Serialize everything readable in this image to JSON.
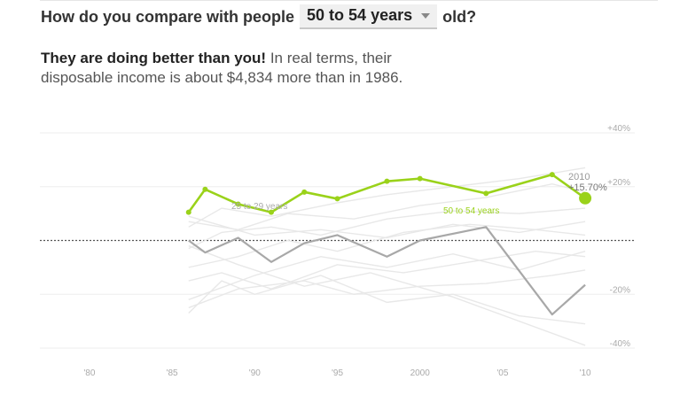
{
  "question": {
    "prefix": "How do you compare with people",
    "selected": "50 to 54 years",
    "suffix": "old?"
  },
  "verdict": {
    "headline": "They are doing better than you!",
    "text": "In real terms, their disposable income is about $4,834 more than in 1986."
  },
  "colors": {
    "highlight": "#9ad21a",
    "comparison": "#a8a8a8",
    "background_series": "#e8e8e8",
    "grid": "#ededed"
  },
  "chart_data": {
    "type": "line",
    "xlim": [
      1977,
      2013
    ],
    "ylim": [
      -40,
      40
    ],
    "y_ticks": [
      {
        "value": 40,
        "label": "+40%"
      },
      {
        "value": 20,
        "label": "+20%"
      },
      {
        "value": -20,
        "label": "-20%"
      },
      {
        "value": -40,
        "label": "-40%"
      }
    ],
    "x_ticks": [
      {
        "value": 1980,
        "label": "'80"
      },
      {
        "value": 1985,
        "label": "'85"
      },
      {
        "value": 1990,
        "label": "'90"
      },
      {
        "value": 1995,
        "label": "'95"
      },
      {
        "value": 2000,
        "label": "2000"
      },
      {
        "value": 2005,
        "label": "'05"
      },
      {
        "value": 2010,
        "label": "'10"
      }
    ],
    "zero_line": "dotted",
    "highlight_series": {
      "name": "50 to 54 years",
      "x": [
        1986,
        1987,
        1989,
        1991,
        1993,
        1995,
        1998,
        2000,
        2004,
        2008,
        2010
      ],
      "y": [
        10.5,
        19,
        13.5,
        10.5,
        18,
        15.5,
        22,
        23,
        17.5,
        24.5,
        15.7
      ]
    },
    "comparison_series": {
      "name": "25 to 29 years",
      "x": [
        1986,
        1987,
        1989,
        1991,
        1993,
        1995,
        1998,
        2000,
        2004,
        2008,
        2010
      ],
      "y": [
        0,
        -4.5,
        1,
        -8,
        -1,
        2,
        -6,
        0,
        5,
        -27.5,
        -16.5
      ]
    },
    "background_series": [
      {
        "x": [
          1986,
          1988,
          1991,
          1995,
          1998,
          2002,
          2006,
          2010
        ],
        "y": [
          5,
          12,
          9,
          14,
          17,
          20,
          23,
          27
        ]
      },
      {
        "x": [
          1986,
          1989,
          1992,
          1996,
          2000,
          2004,
          2008,
          2010
        ],
        "y": [
          7,
          4,
          10,
          8,
          13,
          16,
          21,
          18
        ]
      },
      {
        "x": [
          1986,
          1988,
          1991,
          1994,
          1998,
          2002,
          2006,
          2010
        ],
        "y": [
          -3,
          3,
          5,
          2,
          8,
          11,
          10,
          12
        ]
      },
      {
        "x": [
          1986,
          1989,
          1992,
          1995,
          1999,
          2003,
          2007,
          2010
        ],
        "y": [
          -10,
          -6,
          0,
          -4,
          3,
          6,
          4,
          2
        ]
      },
      {
        "x": [
          1986,
          1988,
          1991,
          1995,
          1999,
          2003,
          2007,
          2010
        ],
        "y": [
          -15,
          -12,
          -18,
          -9,
          -12,
          -8,
          -4,
          -6
        ]
      },
      {
        "x": [
          1986,
          1989,
          1993,
          1996,
          2000,
          2004,
          2008,
          2010
        ],
        "y": [
          -25,
          -18,
          -15,
          -20,
          -17,
          -16,
          -13,
          -11
        ]
      },
      {
        "x": [
          1986,
          1988,
          1990,
          1994,
          1998,
          2002,
          2006,
          2010
        ],
        "y": [
          -27,
          -15,
          -20,
          -13,
          -23,
          -20,
          -28,
          -31
        ]
      },
      {
        "x": [
          1986,
          1990,
          1994,
          1998,
          2002,
          2006,
          2010
        ],
        "y": [
          -22,
          -13,
          -6,
          -10,
          -5,
          -11,
          -4
        ]
      },
      {
        "x": [
          1986,
          1989,
          1993,
          1997,
          2002,
          2006,
          2010
        ],
        "y": [
          -2,
          -9,
          -17,
          -12,
          -21,
          -30,
          -39
        ]
      },
      {
        "x": [
          1986,
          1990,
          1994,
          1998,
          2002,
          2006,
          2010
        ],
        "y": [
          9,
          2,
          4,
          1,
          6,
          3,
          7
        ]
      }
    ],
    "annotations": {
      "year": "2010",
      "value": "+15.70%",
      "highlight_label": "50 to 54 years",
      "comparison_label": "25 to 29 years"
    }
  }
}
